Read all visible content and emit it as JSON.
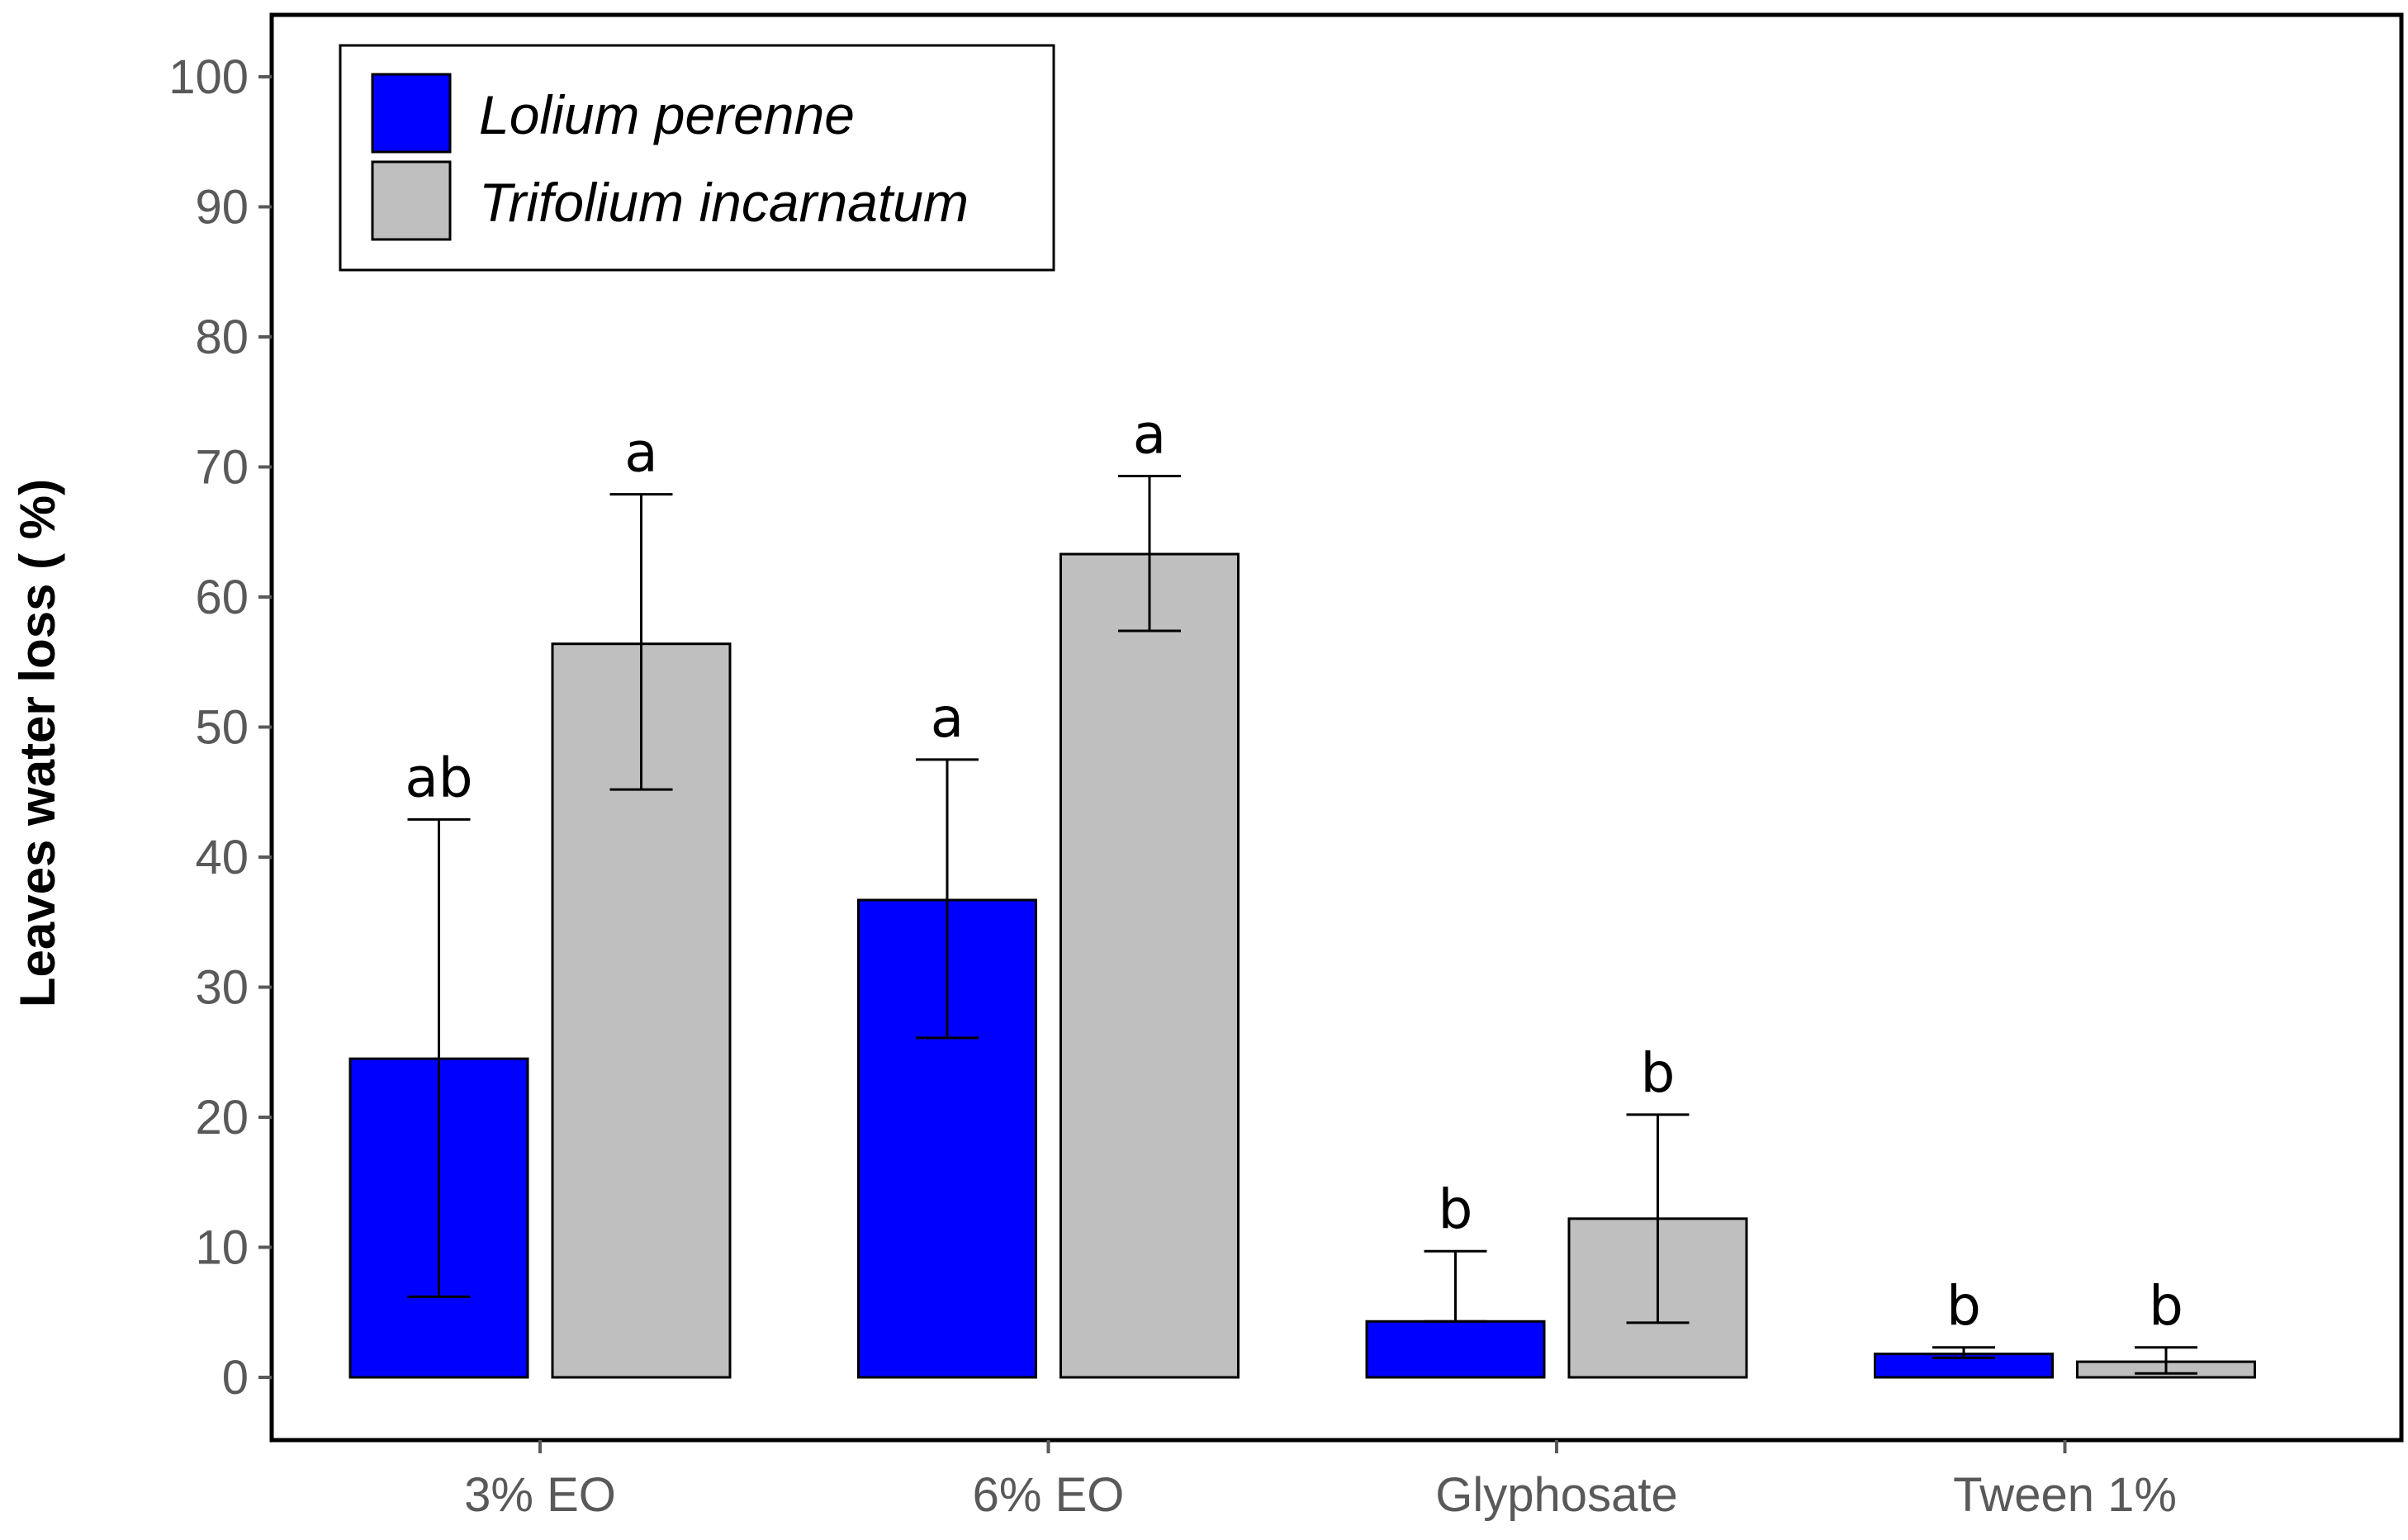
{
  "chart_data": {
    "type": "bar",
    "title": "",
    "xlabel": "",
    "ylabel": "Leaves water loss ( %)",
    "ylim": [
      -5,
      105
    ],
    "yticks": [
      0,
      10,
      20,
      30,
      40,
      50,
      60,
      70,
      80,
      90,
      100
    ],
    "ytick_labels": [
      "0",
      "10",
      "20",
      "30",
      "40",
      "50",
      "60",
      "70",
      "80",
      "90",
      "100"
    ],
    "grid": false,
    "legend_position": "top-left",
    "categories": [
      "3% EO",
      "6% EO",
      "Glyphosate",
      "Tween 1%"
    ],
    "series": [
      {
        "name": "Lolium perenne",
        "color": "#0000ff",
        "values": [
          24.5,
          36.7,
          4.3,
          1.8
        ],
        "error_low": [
          6.2,
          26.1,
          4.3,
          1.5
        ],
        "error_high": [
          42.9,
          47.5,
          9.7,
          2.3
        ],
        "significance": [
          "ab",
          "a",
          "b",
          "b"
        ]
      },
      {
        "name": "Trifolium incarnatum",
        "color": "#bfbfbf",
        "values": [
          56.4,
          63.3,
          12.2,
          1.2
        ],
        "error_low": [
          45.2,
          57.4,
          4.2,
          0.3
        ],
        "error_high": [
          67.9,
          69.3,
          20.2,
          2.3
        ],
        "significance": [
          "a",
          "a",
          "b",
          "b"
        ]
      }
    ]
  }
}
